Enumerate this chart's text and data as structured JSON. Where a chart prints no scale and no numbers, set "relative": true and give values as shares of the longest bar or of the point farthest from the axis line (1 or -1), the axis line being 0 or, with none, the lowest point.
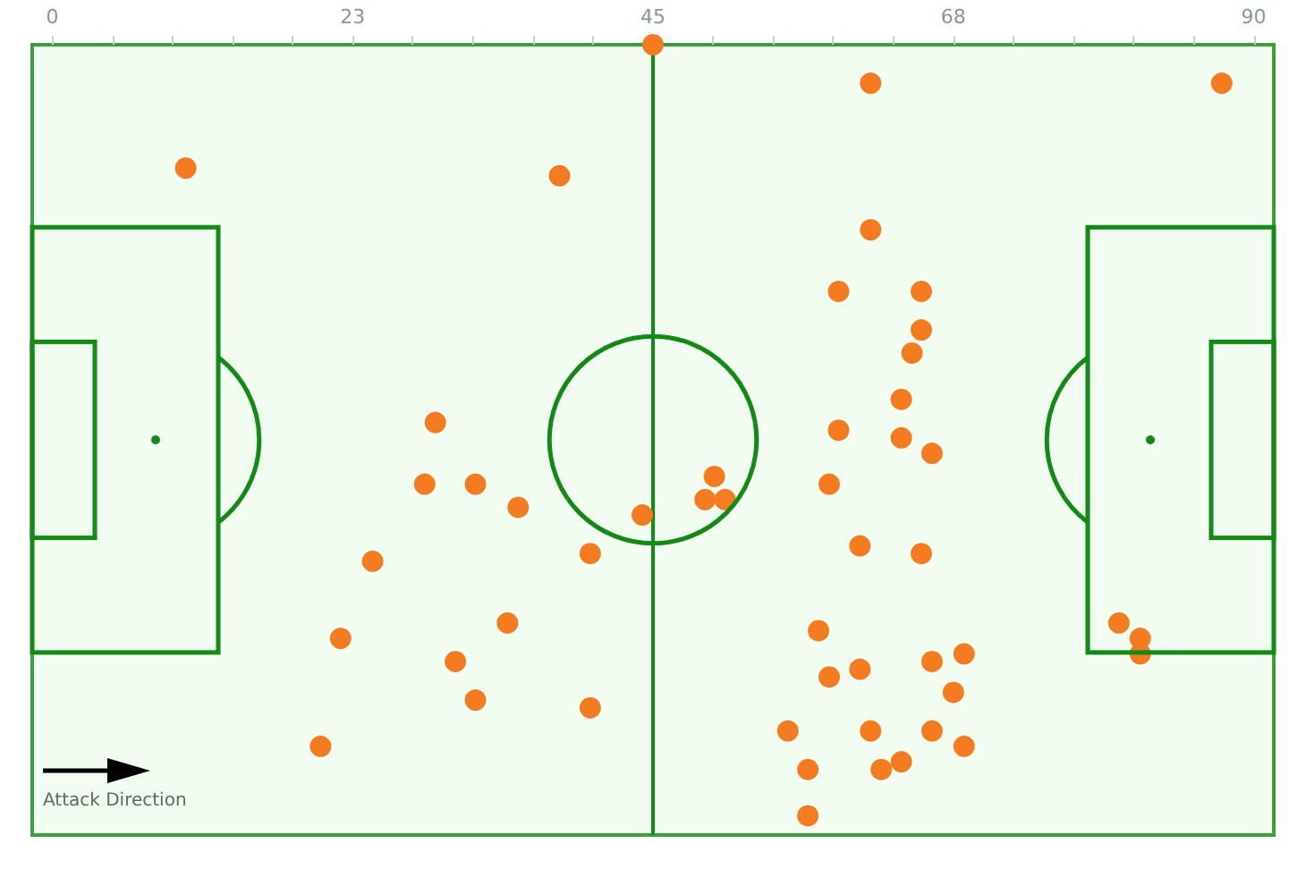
{
  "chart_data": {
    "type": "scatter",
    "color": "#f47b20",
    "marker": "circle",
    "grid": false,
    "tick_labels": "x",
    "relative": true,
    "xlim": [
      -1.5,
      91.5
    ],
    "xticks": [
      0,
      {
        "value": 4.5,
        "label": null
      },
      {
        "value": 9,
        "label": null
      },
      {
        "value": 13.5,
        "label": null
      },
      {
        "value": 18,
        "label": null
      },
      {
        "value": 22.5,
        "label": "23"
      },
      {
        "value": 27,
        "label": null
      },
      {
        "value": 31.5,
        "label": null
      },
      {
        "value": 36,
        "label": null
      },
      {
        "value": 40.5,
        "label": null
      },
      45,
      {
        "value": 49.5,
        "label": null
      },
      {
        "value": 54,
        "label": null
      },
      {
        "value": 58.5,
        "label": null
      },
      {
        "value": 63,
        "label": null
      },
      {
        "value": 67.5,
        "label": "68"
      },
      {
        "value": 72,
        "label": null
      },
      {
        "value": 76.5,
        "label": null
      },
      {
        "value": 81,
        "label": null
      },
      {
        "value": 85.5,
        "label": null
      },
      90
    ],
    "x": [
      10.0,
      38.0,
      45.0,
      28.7,
      27.9,
      31.7,
      34.9,
      44.2,
      40.3,
      24.0,
      34.1,
      21.6,
      30.2,
      31.7,
      40.3,
      20.1,
      61.3,
      87.6,
      61.3,
      58.9,
      65.1,
      65.1,
      64.4,
      63.6,
      58.9,
      63.6,
      65.9,
      49.6,
      48.9,
      50.4,
      58.2,
      60.5,
      65.1,
      79.9,
      81.5,
      81.5,
      57.4,
      68.3,
      65.9,
      58.2,
      60.5,
      67.5,
      55.1,
      61.3,
      65.9,
      68.3,
      56.6,
      62.1,
      63.6,
      56.6
    ],
    "values": [
      0.84,
      0.83,
      1,
      0.51,
      0.43,
      0.43,
      0.4,
      0.39,
      0.34,
      0.33,
      0.25,
      0.23,
      0.2,
      0.15,
      0.14,
      0.09,
      0.95,
      0.95,
      0.76,
      0.68,
      0.68,
      0.63,
      0.6,
      0.54,
      0.5,
      0.49,
      0.47,
      0.44,
      0.41,
      0.41,
      0.43,
      0.35,
      0.34,
      0.25,
      0.23,
      0.21,
      0.24,
      0.21,
      0.2,
      0.18,
      0.19,
      0.16,
      0.11,
      0.11,
      0.11,
      0.09,
      0.06,
      0.06,
      0.07,
      0
    ],
    "ref_lines": [
      {
        "axis": "x",
        "value": 45,
        "label": null,
        "color": "#138a13"
      }
    ],
    "annotations": [
      "Attack Direction"
    ]
  }
}
